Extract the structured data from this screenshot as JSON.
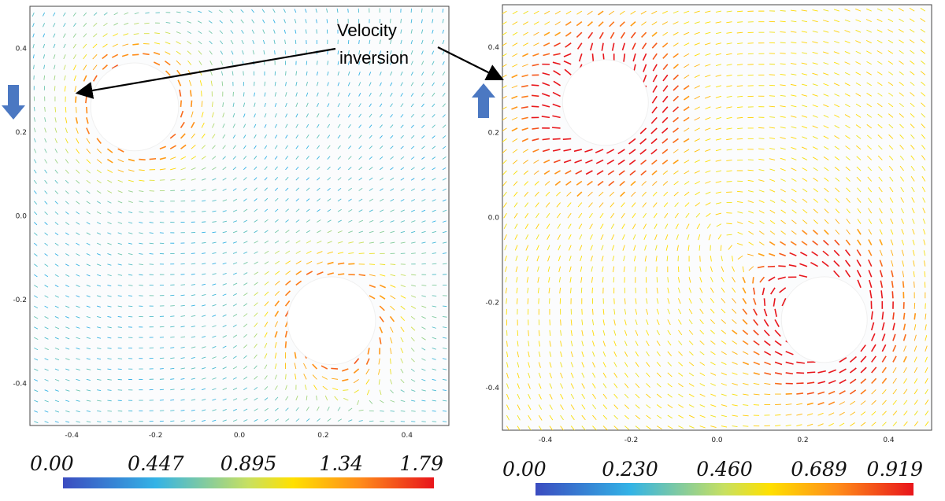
{
  "annotation": {
    "line1": "Velocity",
    "line2": "inversion"
  },
  "chart_data": [
    {
      "type": "vector-field",
      "panel": "left",
      "xlim": [
        -0.5,
        0.5
      ],
      "ylim": [
        -0.5,
        0.5
      ],
      "x_ticks": [
        "-0.4",
        "-0.2",
        "0.0",
        "0.2",
        "0.4"
      ],
      "x_tick_values": [
        -0.4,
        -0.2,
        0.0,
        0.2,
        0.4
      ],
      "y_ticks": [
        "0.4",
        "0.2",
        "0.0",
        "-0.2",
        "-0.4"
      ],
      "y_tick_values": [
        0.4,
        0.2,
        0.0,
        -0.2,
        -0.4
      ],
      "cylinders": [
        {
          "x": -0.25,
          "y": 0.26,
          "r": 0.105
        },
        {
          "x": 0.22,
          "y": -0.25,
          "r": 0.105
        }
      ],
      "flow_direction": "down",
      "colorbar": {
        "min": 0.0,
        "max": 1.79,
        "labels": [
          "0.00",
          "0.447",
          "0.895",
          "1.34",
          "1.79"
        ]
      }
    },
    {
      "type": "vector-field",
      "panel": "right",
      "xlim": [
        -0.5,
        0.5
      ],
      "ylim": [
        -0.5,
        0.5
      ],
      "x_ticks": [
        "-0.4",
        "-0.2",
        "0.0",
        "0.2",
        "0.4"
      ],
      "x_tick_values": [
        -0.4,
        -0.2,
        0.0,
        0.2,
        0.4
      ],
      "y_ticks": [
        "0.4",
        "0.2",
        "0.0",
        "-0.2",
        "-0.4"
      ],
      "y_tick_values": [
        0.4,
        0.2,
        0.0,
        -0.2,
        -0.4
      ],
      "cylinders": [
        {
          "x": -0.26,
          "y": 0.27,
          "r": 0.1
        },
        {
          "x": 0.25,
          "y": -0.24,
          "r": 0.1
        }
      ],
      "flow_direction": "up",
      "colorbar": {
        "min": 0.0,
        "max": 0.919,
        "labels": [
          "0.00",
          "0.230",
          "0.460",
          "0.689",
          "0.919"
        ]
      }
    }
  ]
}
